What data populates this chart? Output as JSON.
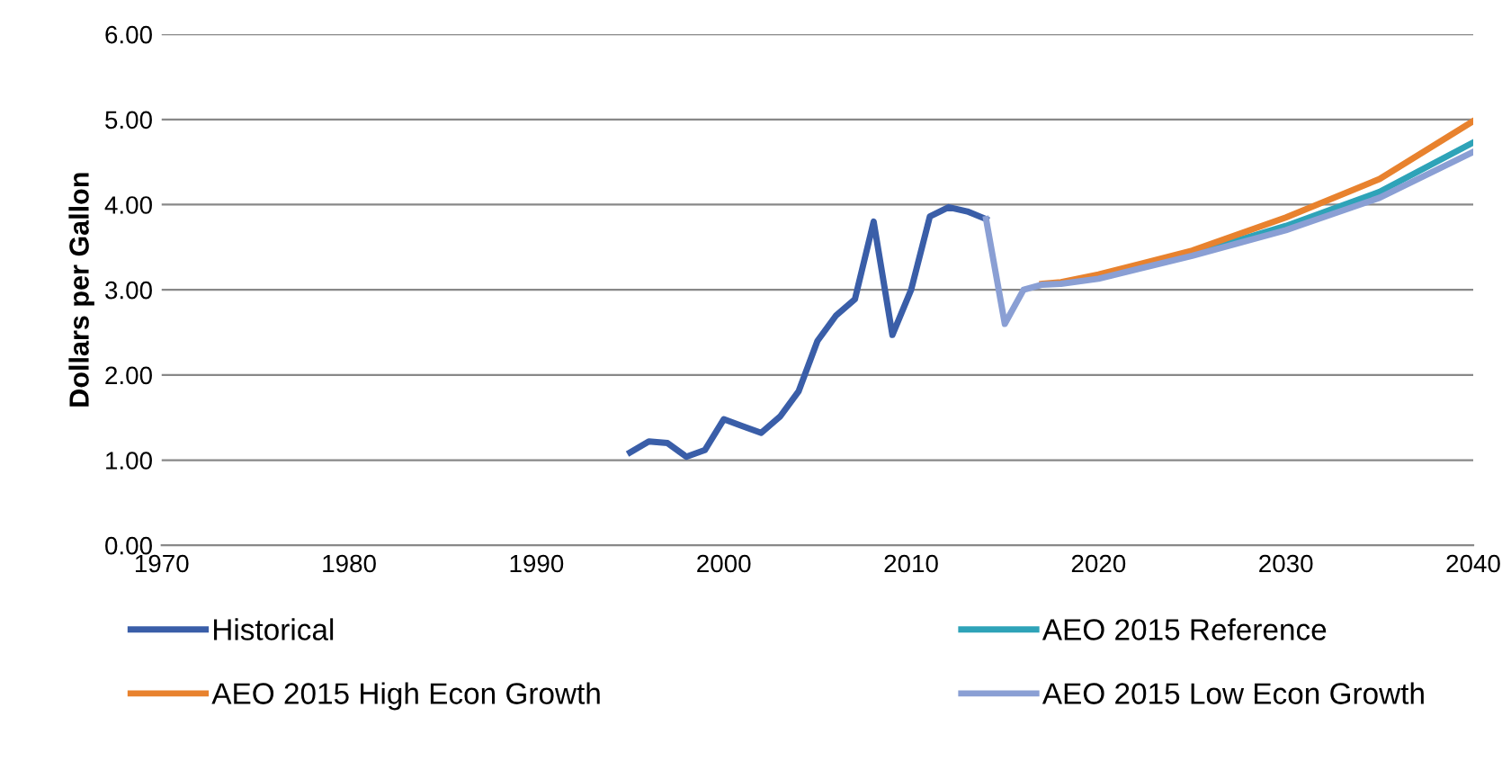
{
  "chart_data": {
    "type": "line",
    "ylabel": "Dollars per Gallon",
    "xlim": [
      1970,
      2040
    ],
    "xticks": [
      1970,
      1980,
      1990,
      2000,
      2010,
      2020,
      2030,
      2040
    ],
    "ylim": [
      0,
      6
    ],
    "yticks": [
      {
        "value": 0,
        "label": "0.00"
      },
      {
        "value": 1,
        "label": "1.00"
      },
      {
        "value": 2,
        "label": "2.00"
      },
      {
        "value": 3,
        "label": "3.00"
      },
      {
        "value": 4,
        "label": "4.00"
      },
      {
        "value": 5,
        "label": "5.00"
      },
      {
        "value": 6,
        "label": "6.00"
      }
    ],
    "grid": "y",
    "legend": "bottom",
    "marker": "none",
    "line_style": "solid",
    "series": [
      {
        "name": "Historical",
        "color": "#3a5ea8",
        "x": [
          1995,
          1996,
          1997,
          1998,
          1999,
          2000,
          2001,
          2002,
          2003,
          2004,
          2005,
          2006,
          2007,
          2008,
          2009,
          2010,
          2011,
          2012,
          2013,
          2014
        ],
        "values": [
          1.09,
          1.22,
          1.2,
          1.04,
          1.12,
          1.48,
          1.4,
          1.32,
          1.51,
          1.81,
          2.4,
          2.7,
          2.89,
          3.8,
          2.47,
          3.0,
          3.86,
          3.97,
          3.92,
          3.83
        ]
      },
      {
        "name": "AEO 2015 Reference",
        "color": "#2ea3b8",
        "x": [
          2020,
          2025,
          2030,
          2035,
          2040
        ],
        "values": [
          3.15,
          3.42,
          3.75,
          4.15,
          4.73
        ]
      },
      {
        "name": "AEO 2015 High Econ Growth",
        "color": "#e8822e",
        "x": [
          2017,
          2018,
          2020,
          2025,
          2030,
          2035,
          2040
        ],
        "values": [
          3.07,
          3.09,
          3.18,
          3.46,
          3.85,
          4.3,
          4.98
        ]
      },
      {
        "name": "AEO 2015 Low Econ Growth",
        "color": "#8a9fd4",
        "x": [
          2014,
          2015,
          2016,
          2017,
          2018,
          2020,
          2025,
          2030,
          2035,
          2040
        ],
        "values": [
          3.83,
          2.6,
          3.0,
          3.06,
          3.07,
          3.13,
          3.4,
          3.7,
          4.08,
          4.62
        ]
      }
    ]
  }
}
